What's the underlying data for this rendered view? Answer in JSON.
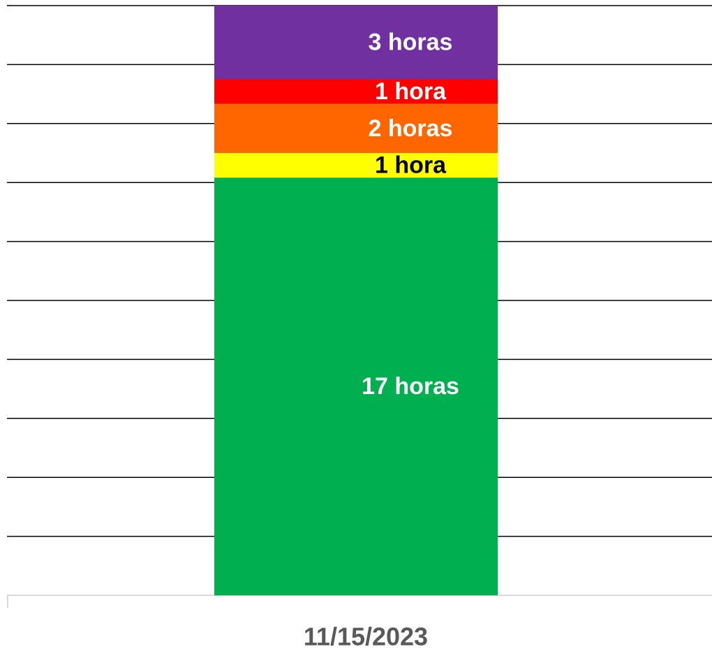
{
  "chart_data": {
    "type": "stacked_bar",
    "categories": [
      "11/15/2023"
    ],
    "series": [
      {
        "color": "#00b050",
        "label_color": "#ffffff",
        "values": [
          17
        ],
        "value_labels": [
          "17 horas"
        ]
      },
      {
        "color": "#ffff00",
        "label_color": "#000000",
        "values": [
          1
        ],
        "value_labels": [
          "1 hora"
        ]
      },
      {
        "color": "#ff6600",
        "label_color": "#ffffff",
        "values": [
          2
        ],
        "value_labels": [
          "2 horas"
        ]
      },
      {
        "color": "#ff0000",
        "label_color": "#ffffff",
        "values": [
          1
        ],
        "value_labels": [
          "1 hora"
        ]
      },
      {
        "color": "#7030a0",
        "label_color": "#ffffff",
        "values": [
          3
        ],
        "value_labels": [
          "3 horas"
        ]
      }
    ],
    "ylim": [
      0,
      24
    ],
    "yticks": [
      0,
      2.4,
      4.8,
      7.2,
      9.6,
      12,
      14.4,
      16.8,
      19.2,
      21.6,
      24
    ],
    "grid": true
  }
}
